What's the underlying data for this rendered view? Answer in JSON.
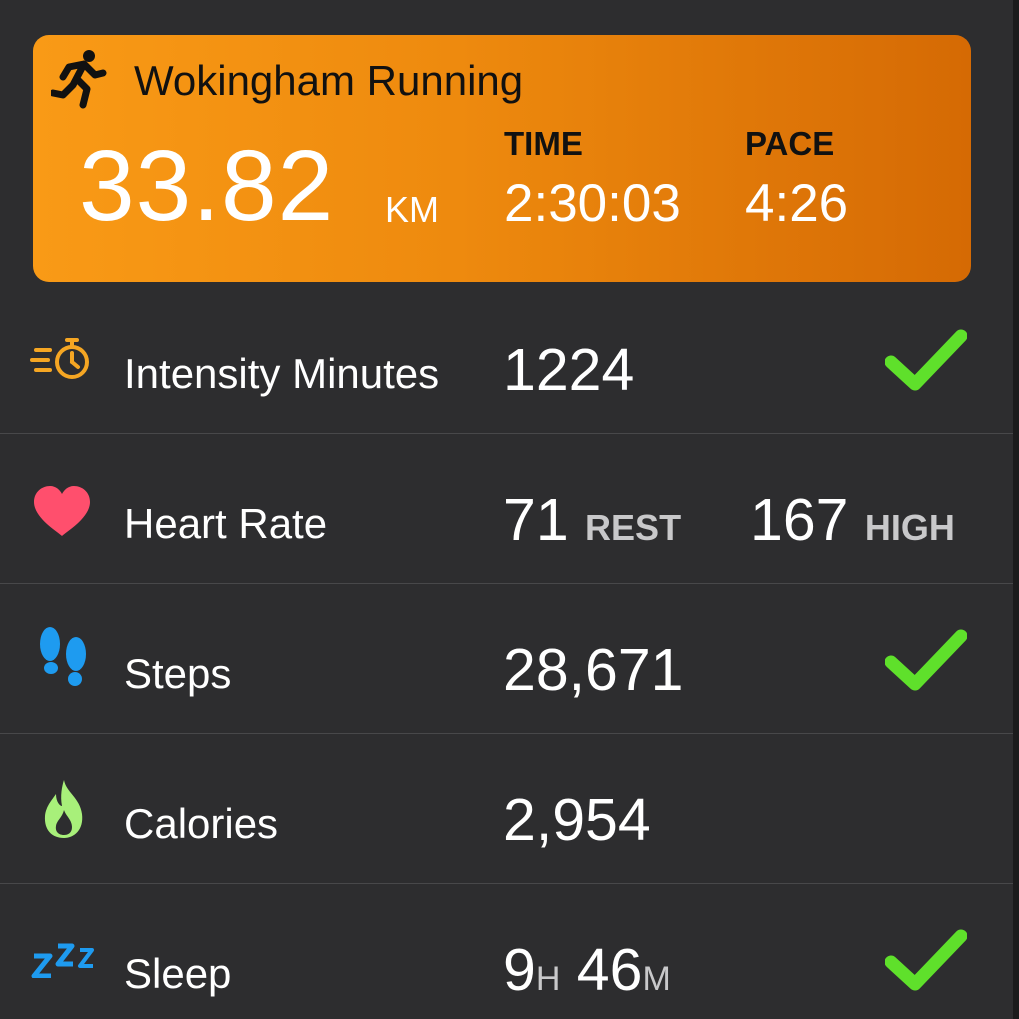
{
  "activity": {
    "title": "Wokingham Running",
    "distance": "33.82",
    "distance_unit": "KM",
    "time_label": "TIME",
    "time_value": "2:30:03",
    "pace_label": "PACE",
    "pace_value": "4:26",
    "card_gradient": [
      "#f99a16",
      "#d56a04"
    ],
    "icon": "running-person-icon"
  },
  "stats": {
    "intensity": {
      "label": "Intensity Minutes",
      "value": "1224",
      "goal_met": true,
      "icon": "stopwatch-icon",
      "icon_color": "#f5a623"
    },
    "heart_rate": {
      "label": "Heart Rate",
      "rest_value": "71",
      "rest_unit": "REST",
      "high_value": "167",
      "high_unit": "HIGH",
      "icon": "heart-icon",
      "icon_color": "#ff4f6d"
    },
    "steps": {
      "label": "Steps",
      "value": "28,671",
      "goal_met": true,
      "icon": "footsteps-icon",
      "icon_color": "#1e9bf0"
    },
    "calories": {
      "label": "Calories",
      "value": "2,954",
      "icon": "flame-icon",
      "icon_color": "#a8f07a"
    },
    "sleep": {
      "label": "Sleep",
      "hours": "9",
      "hours_unit": "H",
      "minutes": "46",
      "minutes_unit": "M",
      "goal_met": true,
      "icon": "zzz-icon",
      "icon_color": "#1e9bf0"
    }
  },
  "colors": {
    "background": "#2d2d2f",
    "check": "#5fe02b",
    "divider": "#48484a"
  }
}
